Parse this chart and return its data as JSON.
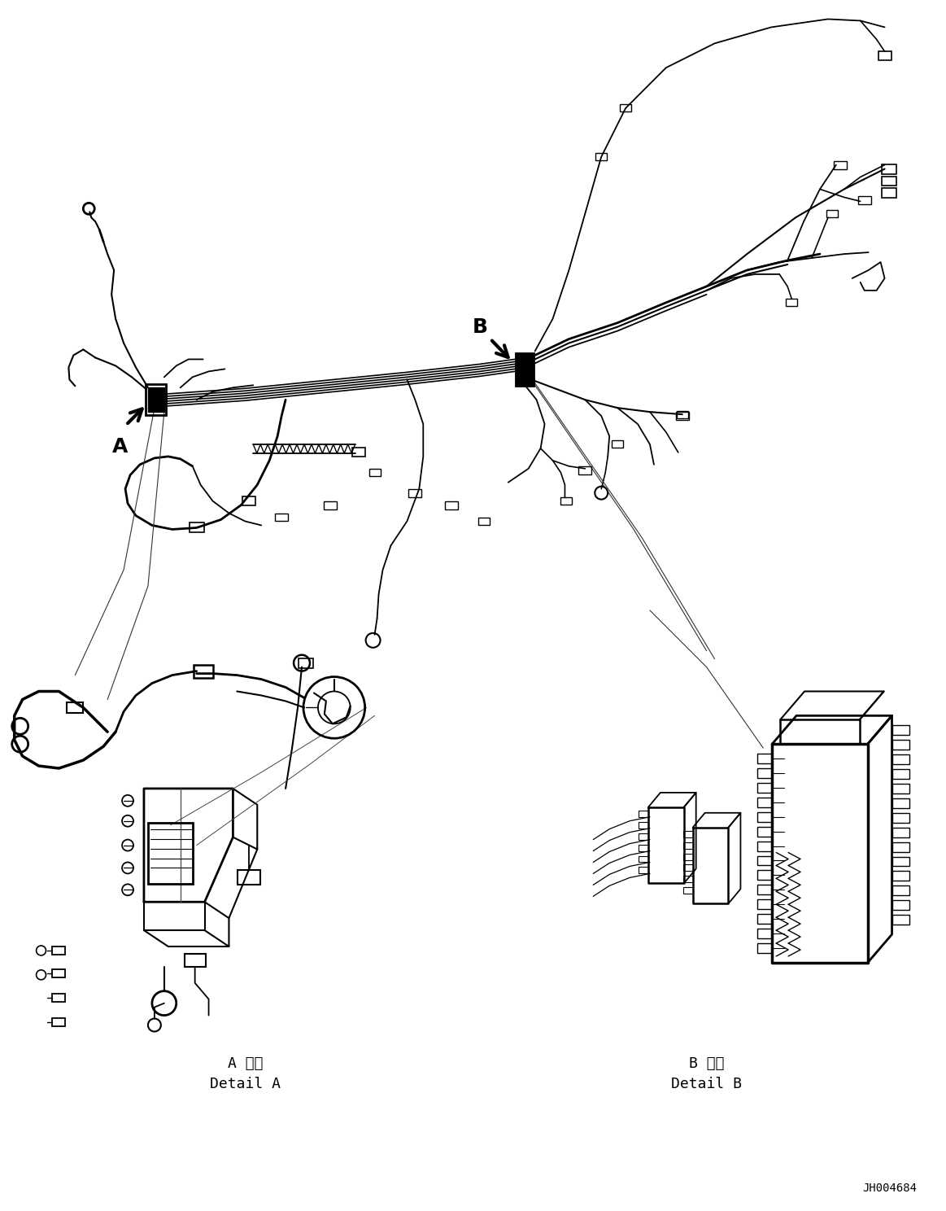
{
  "fig_width": 11.63,
  "fig_height": 14.88,
  "dpi": 100,
  "bg_color": "#ffffff",
  "line_color": "#000000",
  "part_id": "JH004684",
  "detail_a_label_line1": "A 詳細",
  "detail_a_label_line2": "Detail A",
  "detail_b_label_line1": "B 詳細",
  "detail_b_label_line2": "Detail B",
  "label_a": "A",
  "label_b": "B",
  "font_size_label": 18,
  "font_size_detail": 13,
  "font_size_id": 10
}
